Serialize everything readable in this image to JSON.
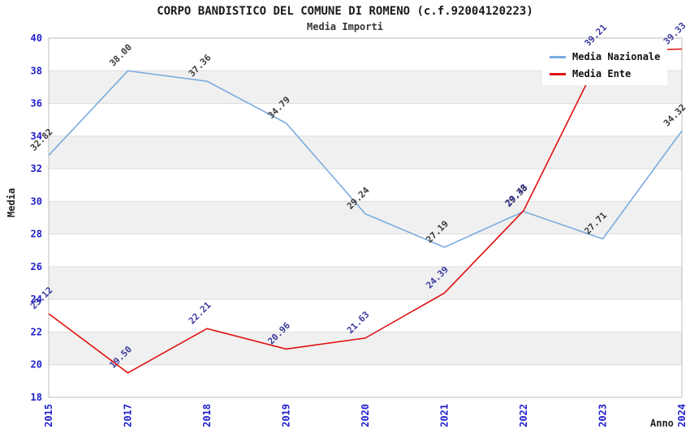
{
  "header": {
    "title": "CORPO BANDISTICO DEL COMUNE DI ROMENO (c.f.92004120223)",
    "subtitle": "Media Importi"
  },
  "chart_data": {
    "type": "line",
    "title": "CORPO BANDISTICO DEL COMUNE DI ROMENO (c.f.92004120223)",
    "subtitle": "Media Importi",
    "xlabel": "Anno",
    "ylabel": "Media",
    "categories": [
      "2015",
      "2017",
      "2018",
      "2019",
      "2020",
      "2021",
      "2022",
      "2023",
      "2024"
    ],
    "series": [
      {
        "name": "Media Nazionale",
        "color": "#7aacdf",
        "label_color": "#3a3a3a",
        "values": [
          32.82,
          38.0,
          37.36,
          34.79,
          29.24,
          27.19,
          29.38,
          27.71,
          34.32
        ]
      },
      {
        "name": "Media Ente",
        "color": "#e01010",
        "label_color": "#3a3a9e",
        "values": [
          23.12,
          19.5,
          22.21,
          20.96,
          21.63,
          24.39,
          29.43,
          39.21,
          39.33
        ]
      }
    ],
    "ylim": [
      18,
      40
    ],
    "yticks": [
      18,
      20,
      22,
      24,
      26,
      28,
      30,
      32,
      34,
      36,
      38,
      40
    ],
    "grid": true,
    "legend_position": "top-right",
    "colors": {
      "tick_label": "#2020cc",
      "band_gray": "#f0f0f0",
      "band_white": "#ffffff",
      "gridline": "#dedede",
      "plot_border": "#bdbdbd"
    }
  }
}
